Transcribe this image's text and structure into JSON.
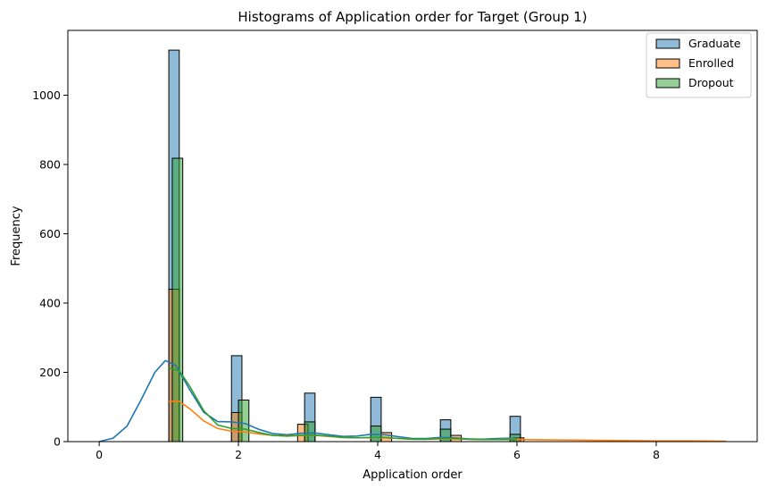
{
  "chart_data": {
    "type": "histogram",
    "title": "Histograms of Application order for Target (Group 1)",
    "xlabel": "Application order",
    "ylabel": "Frequency",
    "xlim": [
      -0.45,
      9.45
    ],
    "ylim": [
      0,
      1187
    ],
    "xticks": [
      0,
      2,
      4,
      6,
      8
    ],
    "yticks": [
      0,
      200,
      400,
      600,
      800,
      1000
    ],
    "grid": false,
    "legend_position": "top-right",
    "series": [
      {
        "name": "Graduate",
        "color": "#1f77b4",
        "fill": "rgba(31,119,180,0.5)",
        "bins": [
          {
            "x0": 1.0,
            "x1": 1.15,
            "value": 1130
          },
          {
            "x0": 1.9,
            "x1": 2.05,
            "value": 248
          },
          {
            "x0": 2.95,
            "x1": 3.1,
            "value": 140
          },
          {
            "x0": 3.9,
            "x1": 4.05,
            "value": 128
          },
          {
            "x0": 4.9,
            "x1": 5.05,
            "value": 63
          },
          {
            "x0": 5.9,
            "x1": 6.05,
            "value": 73
          }
        ],
        "kde": [
          [
            0,
            0
          ],
          [
            0.2,
            10
          ],
          [
            0.4,
            45
          ],
          [
            0.6,
            120
          ],
          [
            0.8,
            200
          ],
          [
            0.95,
            234
          ],
          [
            1.1,
            220
          ],
          [
            1.3,
            150
          ],
          [
            1.5,
            85
          ],
          [
            1.7,
            58
          ],
          [
            1.9,
            57
          ],
          [
            2.1,
            52
          ],
          [
            2.3,
            35
          ],
          [
            2.5,
            23
          ],
          [
            2.7,
            20
          ],
          [
            2.9,
            24
          ],
          [
            3.1,
            25
          ],
          [
            3.3,
            20
          ],
          [
            3.5,
            15
          ],
          [
            3.7,
            16
          ],
          [
            3.9,
            21
          ],
          [
            4.1,
            20
          ],
          [
            4.3,
            14
          ],
          [
            4.5,
            9
          ],
          [
            4.7,
            9
          ],
          [
            4.9,
            12
          ],
          [
            5.1,
            11
          ],
          [
            5.3,
            8
          ],
          [
            5.5,
            7
          ],
          [
            5.7,
            9
          ],
          [
            5.9,
            10
          ],
          [
            6.0,
            8
          ]
        ]
      },
      {
        "name": "Enrolled",
        "color": "#ff7f0e",
        "fill": "rgba(255,127,14,0.5)",
        "bins": [
          {
            "x0": 1.0,
            "x1": 1.15,
            "value": 440
          },
          {
            "x0": 1.9,
            "x1": 2.05,
            "value": 84
          },
          {
            "x0": 2.85,
            "x1": 3.0,
            "value": 50
          },
          {
            "x0": 4.05,
            "x1": 4.2,
            "value": 26
          },
          {
            "x0": 5.05,
            "x1": 5.2,
            "value": 18
          },
          {
            "x0": 5.95,
            "x1": 6.1,
            "value": 11
          }
        ],
        "kde": [
          [
            1.0,
            116
          ],
          [
            1.15,
            116
          ],
          [
            1.3,
            95
          ],
          [
            1.5,
            60
          ],
          [
            1.7,
            38
          ],
          [
            1.9,
            30
          ],
          [
            2.1,
            28
          ],
          [
            2.3,
            22
          ],
          [
            2.5,
            18
          ],
          [
            2.7,
            17
          ],
          [
            2.9,
            18
          ],
          [
            3.1,
            18
          ],
          [
            3.3,
            15
          ],
          [
            3.5,
            12
          ],
          [
            3.7,
            11
          ],
          [
            3.9,
            11
          ],
          [
            4.1,
            11
          ],
          [
            4.3,
            9
          ],
          [
            4.5,
            7
          ],
          [
            4.7,
            7
          ],
          [
            4.9,
            8
          ],
          [
            5.1,
            8
          ],
          [
            5.3,
            7
          ],
          [
            5.5,
            6
          ],
          [
            5.7,
            6
          ],
          [
            5.9,
            7
          ],
          [
            6.1,
            6
          ],
          [
            6.5,
            5
          ],
          [
            7.0,
            4
          ],
          [
            7.5,
            3
          ],
          [
            8.0,
            2
          ],
          [
            8.5,
            2
          ],
          [
            9.0,
            1
          ]
        ]
      },
      {
        "name": "Dropout",
        "color": "#2ca02c",
        "fill": "rgba(44,160,44,0.5)",
        "bins": [
          {
            "x0": 1.05,
            "x1": 1.2,
            "value": 818
          },
          {
            "x0": 2.0,
            "x1": 2.15,
            "value": 120
          },
          {
            "x0": 2.95,
            "x1": 3.1,
            "value": 57
          },
          {
            "x0": 3.9,
            "x1": 4.05,
            "value": 45
          },
          {
            "x0": 4.9,
            "x1": 5.05,
            "value": 36
          },
          {
            "x0": 5.9,
            "x1": 6.05,
            "value": 21
          }
        ],
        "kde": [
          [
            1.0,
            212
          ],
          [
            1.15,
            205
          ],
          [
            1.3,
            160
          ],
          [
            1.5,
            90
          ],
          [
            1.7,
            48
          ],
          [
            1.9,
            38
          ],
          [
            2.1,
            36
          ],
          [
            2.3,
            26
          ],
          [
            2.5,
            18
          ],
          [
            2.7,
            16
          ],
          [
            2.9,
            18
          ],
          [
            3.1,
            19
          ],
          [
            3.3,
            16
          ],
          [
            3.5,
            12
          ],
          [
            3.7,
            11
          ],
          [
            3.9,
            12
          ],
          [
            4.1,
            12
          ],
          [
            4.3,
            9
          ],
          [
            4.5,
            7
          ],
          [
            4.7,
            7
          ],
          [
            4.9,
            9
          ],
          [
            5.1,
            9
          ],
          [
            5.3,
            7
          ],
          [
            5.5,
            6
          ],
          [
            5.7,
            6
          ],
          [
            5.9,
            6
          ],
          [
            6.0,
            5
          ]
        ]
      }
    ]
  }
}
